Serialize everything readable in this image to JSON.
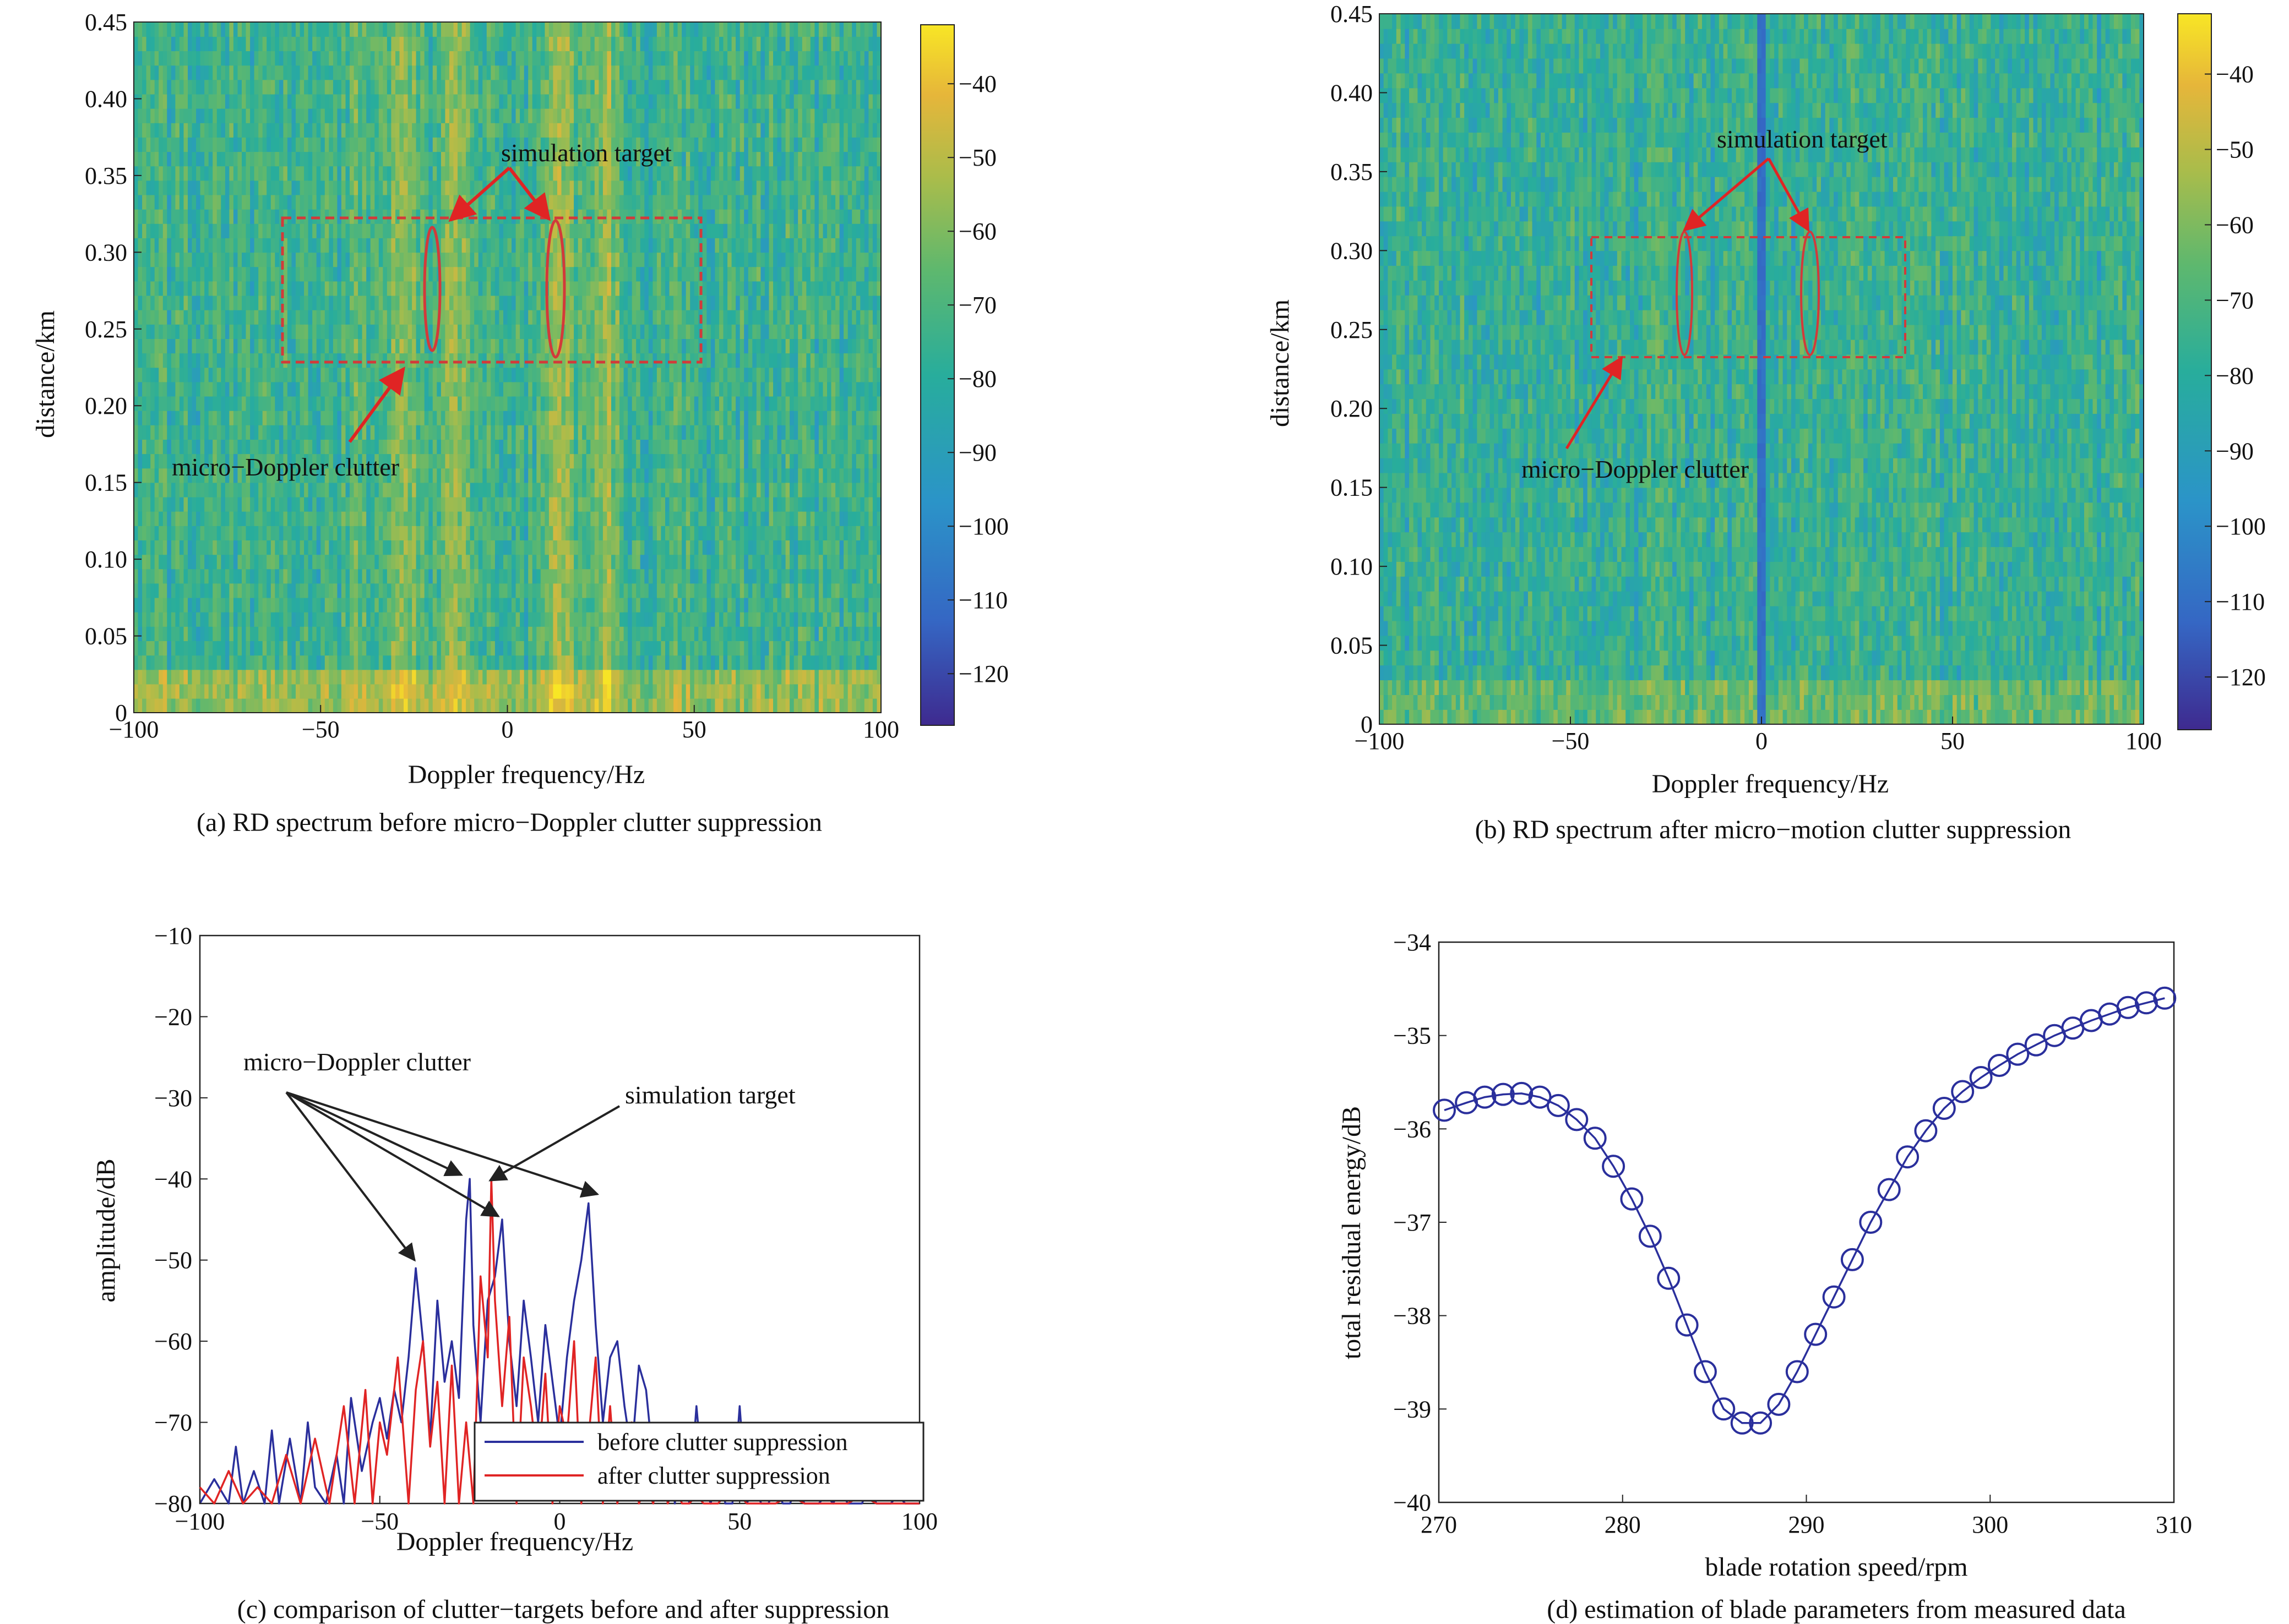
{
  "chart_data": [
    {
      "type": "heatmap",
      "xlabel": "Doppler frequency/Hz",
      "ylabel": "distance/km",
      "caption": "(a) RD spectrum before micro−Doppler clutter suppression",
      "xlim": [
        -100,
        100
      ],
      "ylim": [
        0,
        0.45
      ],
      "xticks": [
        "−100",
        "−50",
        "0",
        "50",
        "100"
      ],
      "yticks": [
        "0",
        "0.05",
        "0.10",
        "0.15",
        "0.20",
        "0.25",
        "0.30",
        "0.35",
        "0.40",
        "0.45"
      ],
      "colorbar_ticks": [
        "−40",
        "−50",
        "−60",
        "−70",
        "−80",
        "−90",
        "−100",
        "−110",
        "−120"
      ],
      "colorbar_range": [
        -127,
        -32
      ],
      "colormap": [
        "#3e2a8f",
        "#3567c4",
        "#2b94c8",
        "#28ad9c",
        "#5eb86e",
        "#a9bc4b",
        "#e6b63a",
        "#f8e625"
      ],
      "bright_columns_hz": [
        -28,
        -14,
        14,
        26
      ],
      "annotations": {
        "target_label": "simulation target",
        "clutter_label": "micro−Doppler clutter",
        "target_ellipses_hz": [
          -20,
          14
        ],
        "box_hz": [
          -60,
          52
        ],
        "box_km": [
          0.227,
          0.318
        ]
      }
    },
    {
      "type": "heatmap",
      "xlabel": "Doppler frequency/Hz",
      "ylabel": "distance/km",
      "caption": "(b) RD spectrum after micro−motion clutter suppression",
      "xlim": [
        -100,
        100
      ],
      "ylim": [
        0,
        0.45
      ],
      "xticks": [
        "−100",
        "−50",
        "0",
        "50",
        "100"
      ],
      "yticks": [
        "0",
        "0.05",
        "0.10",
        "0.15",
        "0.20",
        "0.25",
        "0.30",
        "0.35",
        "0.40",
        "0.45"
      ],
      "colorbar_ticks": [
        "−40",
        "−50",
        "−60",
        "−70",
        "−80",
        "−90",
        "−100",
        "−110",
        "−120"
      ],
      "colorbar_range": [
        -127,
        -32
      ],
      "colormap": [
        "#3e2a8f",
        "#3567c4",
        "#2b94c8",
        "#28ad9c",
        "#5eb86e",
        "#a9bc4b",
        "#e6b63a",
        "#f8e625"
      ],
      "notch_columns_hz": [
        0
      ],
      "annotations": {
        "target_label": "simulation target",
        "clutter_label": "micro−Doppler clutter",
        "target_ellipses_hz": [
          -20,
          12
        ],
        "box_hz": [
          -45,
          38
        ],
        "box_km": [
          0.23,
          0.308
        ]
      }
    },
    {
      "type": "line",
      "xlabel": "Doppler frequency/Hz",
      "ylabel": "amplitude/dB",
      "caption": "(c) comparison of clutter−targets before and after suppression",
      "xlim": [
        -100,
        100
      ],
      "ylim": [
        -80,
        -10
      ],
      "xticks": [
        "−100",
        "−50",
        "0",
        "50",
        "100"
      ],
      "yticks": [
        "−10",
        "−20",
        "−30",
        "−40",
        "−50",
        "−60",
        "−70",
        "−80"
      ],
      "series": [
        {
          "name": "before clutter suppression",
          "color": "#2a2f9c",
          "x": [
            -100,
            -96,
            -92,
            -90,
            -88,
            -85,
            -82,
            -80,
            -78,
            -75,
            -72,
            -70,
            -68,
            -65,
            -62,
            -60,
            -58,
            -55,
            -52,
            -50,
            -48,
            -46,
            -44,
            -42,
            -40,
            -38,
            -36,
            -34,
            -32,
            -30,
            -28,
            -26,
            -25,
            -24,
            -22,
            -20,
            -18,
            -16,
            -14,
            -12,
            -10,
            -8,
            -6,
            -4,
            -2,
            0,
            2,
            4,
            6,
            8,
            10,
            12,
            14,
            16,
            18,
            20,
            22,
            24,
            26,
            28,
            30,
            32,
            34,
            36,
            38,
            40,
            42,
            44,
            46,
            48,
            50,
            52,
            54,
            56,
            58,
            60,
            62,
            64,
            66,
            68,
            70,
            72,
            74,
            76,
            78,
            80,
            82,
            84,
            86,
            88,
            90,
            92,
            94,
            96,
            98,
            100
          ],
          "values": [
            -80,
            -77,
            -80,
            -73,
            -80,
            -76,
            -80,
            -71,
            -80,
            -72,
            -80,
            -70,
            -78,
            -80,
            -74,
            -80,
            -67,
            -76,
            -70,
            -67,
            -72,
            -66,
            -70,
            -62,
            -51,
            -60,
            -72,
            -55,
            -65,
            -60,
            -67,
            -45,
            -40,
            -58,
            -70,
            -55,
            -52,
            -45,
            -60,
            -68,
            -55,
            -62,
            -70,
            -58,
            -65,
            -72,
            -62,
            -55,
            -50,
            -43,
            -58,
            -70,
            -62,
            -60,
            -68,
            -74,
            -63,
            -66,
            -75,
            -72,
            -71,
            -80,
            -72,
            -80,
            -68,
            -78,
            -80,
            -72,
            -80,
            -80,
            -68,
            -80,
            -78,
            -80,
            -80,
            -78,
            -80,
            -80,
            -78,
            -80,
            -80,
            -80,
            -79,
            -80,
            -78,
            -80,
            -80,
            -80,
            -78,
            -80,
            -80,
            -80,
            -79,
            -80,
            -80,
            -80
          ]
        },
        {
          "name": "after clutter suppression",
          "color": "#e02424",
          "x": [
            -100,
            -96,
            -92,
            -88,
            -84,
            -80,
            -76,
            -72,
            -68,
            -64,
            -60,
            -57,
            -54,
            -52,
            -50,
            -48,
            -45,
            -42,
            -40,
            -38,
            -36,
            -34,
            -32,
            -30,
            -28,
            -26,
            -24,
            -22,
            -20,
            -19,
            -18,
            -16,
            -14,
            -12,
            -10,
            -8,
            -6,
            -4,
            -2,
            0,
            2,
            4,
            6,
            8,
            10,
            12,
            14,
            16,
            18,
            20,
            22,
            24,
            26,
            28,
            30,
            32,
            34,
            36,
            38,
            40,
            44,
            48,
            52,
            56,
            60,
            64,
            68,
            72,
            76,
            80,
            84,
            88,
            92,
            96,
            100
          ],
          "values": [
            -78,
            -80,
            -76,
            -80,
            -78,
            -80,
            -74,
            -80,
            -72,
            -80,
            -68,
            -80,
            -66,
            -80,
            -70,
            -74,
            -62,
            -80,
            -66,
            -60,
            -73,
            -65,
            -80,
            -63,
            -80,
            -70,
            -80,
            -52,
            -62,
            -40,
            -55,
            -68,
            -57,
            -80,
            -62,
            -68,
            -76,
            -64,
            -80,
            -68,
            -72,
            -60,
            -80,
            -72,
            -62,
            -80,
            -68,
            -80,
            -76,
            -70,
            -80,
            -78,
            -80,
            -74,
            -80,
            -78,
            -80,
            -80,
            -79,
            -80,
            -80,
            -78,
            -80,
            -80,
            -80,
            -79,
            -80,
            -80,
            -80,
            -80,
            -79,
            -80,
            -80,
            -80,
            -80
          ]
        }
      ],
      "annotations": {
        "clutter_label": "micro−Doppler clutter",
        "target_label": "simulation target"
      },
      "legend_position": "bottom-right"
    },
    {
      "type": "line",
      "xlabel": "blade rotation speed/rpm",
      "ylabel": "total residual energy/dB",
      "caption": "(d) estimation of blade parameters from measured data",
      "xlim": [
        270,
        310
      ],
      "ylim": [
        -40,
        -34
      ],
      "xticks": [
        "270",
        "280",
        "290",
        "300",
        "310"
      ],
      "yticks": [
        "−34",
        "−35",
        "−36",
        "−37",
        "−38",
        "−39",
        "−40"
      ],
      "series": [
        {
          "color": "#2a2f9c",
          "marker": "circle",
          "x": [
            270.3,
            271.5,
            272.5,
            273.5,
            274.5,
            275.5,
            276.5,
            277.5,
            278.5,
            279.5,
            280.5,
            281.5,
            282.5,
            283.5,
            284.5,
            285.5,
            286.5,
            287.5,
            288.5,
            289.5,
            290.5,
            291.5,
            292.5,
            293.5,
            294.5,
            295.5,
            296.5,
            297.5,
            298.5,
            299.5,
            300.5,
            301.5,
            302.5,
            303.5,
            304.5,
            305.5,
            306.5,
            307.5,
            308.5,
            309.5
          ],
          "values": [
            -35.8,
            -35.72,
            -35.66,
            -35.63,
            -35.62,
            -35.66,
            -35.75,
            -35.9,
            -36.1,
            -36.4,
            -36.75,
            -37.15,
            -37.6,
            -38.1,
            -38.6,
            -39.0,
            -39.15,
            -39.15,
            -38.95,
            -38.6,
            -38.2,
            -37.8,
            -37.4,
            -37.0,
            -36.65,
            -36.3,
            -36.02,
            -35.78,
            -35.6,
            -35.45,
            -35.32,
            -35.2,
            -35.1,
            -35.0,
            -34.92,
            -34.84,
            -34.77,
            -34.7,
            -34.65,
            -34.6
          ]
        }
      ]
    }
  ]
}
